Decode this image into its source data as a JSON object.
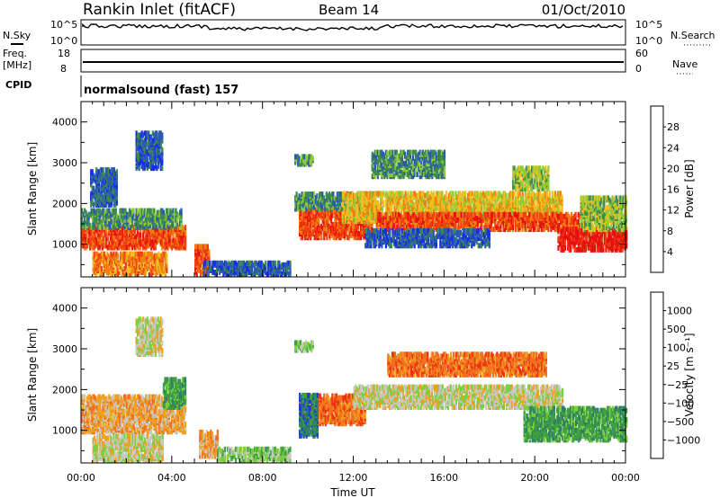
{
  "header": {
    "station": "Rankin Inlet (fitACF)",
    "beam": "Beam 14",
    "date": "01/Oct/2010"
  },
  "panels": {
    "nsky_label": "N.Sky",
    "nsky_ticks": [
      "10^5",
      "10^0"
    ],
    "nsearch_label": "N.Search",
    "nsearch_ticks": [
      "10^5",
      "10^0"
    ],
    "freq_label_1": "Freq.",
    "freq_label_2": "[MHz]",
    "freq_ticks": [
      "18",
      "8"
    ],
    "nave_label": "Nave",
    "nave_ticks": [
      "60",
      "0"
    ],
    "cpid_label": "CPID",
    "cpid_value": "normalsound (fast) 157"
  },
  "chart_data": [
    {
      "type": "heatmap",
      "name": "power",
      "ylabel": "Slant Range [km]",
      "yticks": [
        1000,
        2000,
        3000,
        4000
      ],
      "ylim": [
        200,
        4500
      ],
      "xlim": [
        0,
        24
      ],
      "colorbar_label": "Power [dB]",
      "colorbar_ticks": [
        "4",
        "8",
        "12",
        "16",
        "20",
        "24",
        "28"
      ],
      "colorbar_colors": [
        "#1a2be6",
        "#2a5ab0",
        "#3d8a52",
        "#8fca3a",
        "#f0c020",
        "#f08010",
        "#f04010",
        "#e61010"
      ],
      "scatter_bands": [
        {
          "t0": 0.0,
          "t1": 4.6,
          "r0": 850,
          "r1": 1350,
          "cat": 6
        },
        {
          "t0": 0.0,
          "t1": 4.4,
          "r0": 1350,
          "r1": 1800,
          "cat": 2
        },
        {
          "t0": 0.5,
          "t1": 3.8,
          "r0": 200,
          "r1": 700,
          "cat": 5
        },
        {
          "t0": 2.4,
          "t1": 3.6,
          "r0": 2800,
          "r1": 3700,
          "cat": 1
        },
        {
          "t0": 0.4,
          "t1": 1.6,
          "r0": 1900,
          "r1": 2800,
          "cat": 1
        },
        {
          "t0": 5.0,
          "t1": 5.6,
          "r0": 200,
          "r1": 900,
          "cat": 6
        },
        {
          "t0": 5.4,
          "t1": 9.2,
          "r0": 200,
          "r1": 500,
          "cat": 1
        },
        {
          "t0": 9.6,
          "t1": 12.8,
          "r0": 1100,
          "r1": 1800,
          "cat": 6
        },
        {
          "t0": 9.4,
          "t1": 13.0,
          "r0": 1800,
          "r1": 2200,
          "cat": 2
        },
        {
          "t0": 11.5,
          "t1": 21.2,
          "r0": 1500,
          "r1": 2200,
          "cat": 4
        },
        {
          "t0": 13.0,
          "t1": 22.5,
          "r0": 1300,
          "r1": 1700,
          "cat": 6
        },
        {
          "t0": 12.8,
          "t1": 16.0,
          "r0": 2600,
          "r1": 3200,
          "cat": 2
        },
        {
          "t0": 19.0,
          "t1": 20.6,
          "r0": 2300,
          "r1": 2800,
          "cat": 3
        },
        {
          "t0": 21.0,
          "t1": 24.0,
          "r0": 800,
          "r1": 1300,
          "cat": 7
        },
        {
          "t0": 22.0,
          "t1": 24.0,
          "r0": 1300,
          "r1": 2100,
          "cat": 3
        },
        {
          "t0": 12.5,
          "t1": 18.0,
          "r0": 900,
          "r1": 1300,
          "cat": 1
        },
        {
          "t0": 9.4,
          "t1": 10.2,
          "r0": 2900,
          "r1": 3100,
          "cat": 2
        }
      ]
    },
    {
      "type": "heatmap",
      "name": "velocity",
      "ylabel": "Slant Range [km]",
      "yticks": [
        1000,
        2000,
        3000,
        4000
      ],
      "ylim": [
        200,
        4500
      ],
      "xlim": [
        0,
        24
      ],
      "xticks": [
        "00:00",
        "04:00",
        "08:00",
        "12:00",
        "16:00",
        "20:00",
        "00:00"
      ],
      "xlabel": "Time UT",
      "colorbar_label": "Velocity [m s⁻¹]",
      "colorbar_ticks": [
        "1000",
        "500",
        "100",
        "25",
        "−25",
        "−100",
        "−500",
        "−1000"
      ],
      "colorbar_colors": [
        "#1a3ed0",
        "#2e7d6a",
        "#3ea040",
        "#7ccf40",
        "#c8c8c0",
        "#f0a020",
        "#f07020",
        "#f03010",
        "#e61010"
      ],
      "scatter_bands": [
        {
          "t0": 0.0,
          "t1": 4.6,
          "r0": 900,
          "r1": 1800,
          "cat": 5
        },
        {
          "t0": 3.6,
          "t1": 4.6,
          "r0": 1500,
          "r1": 2200,
          "cat": 2
        },
        {
          "t0": 0.5,
          "t1": 3.6,
          "r0": 200,
          "r1": 800,
          "cat": 4
        },
        {
          "t0": 5.2,
          "t1": 6.0,
          "r0": 300,
          "r1": 900,
          "cat": 5
        },
        {
          "t0": 6.0,
          "t1": 9.2,
          "r0": 200,
          "r1": 500,
          "cat": 3
        },
        {
          "t0": 9.6,
          "t1": 12.5,
          "r0": 1100,
          "r1": 1800,
          "cat": 6
        },
        {
          "t0": 9.6,
          "t1": 10.4,
          "r0": 800,
          "r1": 1800,
          "cat": 1
        },
        {
          "t0": 12.0,
          "t1": 21.2,
          "r0": 1500,
          "r1": 2000,
          "cat": 4
        },
        {
          "t0": 13.5,
          "t1": 20.5,
          "r0": 2300,
          "r1": 2800,
          "cat": 6
        },
        {
          "t0": 19.5,
          "t1": 24.0,
          "r0": 700,
          "r1": 1500,
          "cat": 2
        },
        {
          "t0": 2.4,
          "t1": 3.6,
          "r0": 2800,
          "r1": 3700,
          "cat": 4
        },
        {
          "t0": 9.4,
          "t1": 10.2,
          "r0": 2900,
          "r1": 3100,
          "cat": 3
        }
      ]
    }
  ]
}
